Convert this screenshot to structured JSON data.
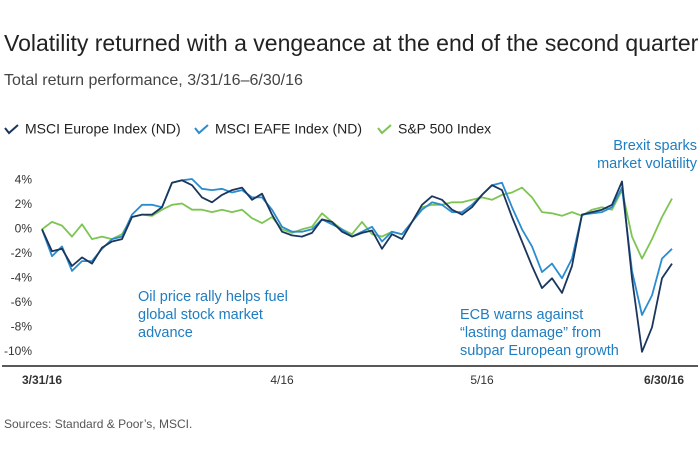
{
  "chart_data": {
    "type": "line",
    "title": "Volatility returned with a vengeance at the end of the second quarter",
    "subtitle": "Total return performance, 3/31/16–6/30/16",
    "source": "Sources: Standard & Poor’s, MSCI.",
    "categories": [
      "3/31/16",
      null,
      null,
      null,
      null,
      null,
      null,
      null,
      null,
      null,
      null,
      null,
      null,
      null,
      null,
      null,
      null,
      null,
      null,
      null,
      null,
      null,
      null,
      null,
      "4/16",
      null,
      null,
      null,
      null,
      null,
      null,
      null,
      null,
      null,
      null,
      null,
      null,
      null,
      null,
      null,
      null,
      null,
      null,
      null,
      "5/16",
      null,
      null,
      null,
      null,
      null,
      null,
      null,
      null,
      null,
      null,
      null,
      null,
      null,
      null,
      null,
      null,
      null,
      null,
      "6/30/16"
    ],
    "series": [
      {
        "name": "MSCI Europe Index (ND)",
        "color": "#1b365d",
        "values": [
          0,
          -1.8,
          -1.6,
          -3.0,
          -2.3,
          -2.8,
          -1.5,
          -1.0,
          -0.8,
          1.0,
          1.2,
          1.2,
          1.8,
          3.8,
          4.0,
          3.6,
          2.6,
          2.2,
          2.8,
          3.2,
          3.4,
          2.4,
          2.9,
          1.2,
          -0.2,
          -0.5,
          -0.6,
          -0.3,
          0.8,
          0.6,
          -0.2,
          -0.6,
          -0.3,
          -0.1,
          -1.6,
          -0.4,
          -0.8,
          0.6,
          2.0,
          2.7,
          2.4,
          1.6,
          1.2,
          1.8,
          2.8,
          3.6,
          3.2,
          1.0,
          -1.0,
          -3.0,
          -4.8,
          -4.0,
          -5.2,
          -3.0,
          1.2,
          1.4,
          1.6,
          2.0,
          3.9,
          -4.0,
          -10.0,
          -8.0,
          -4.0,
          -2.8
        ]
      },
      {
        "name": "MSCI EAFE Index (ND)",
        "color": "#2b8ccf",
        "values": [
          0,
          -2.2,
          -1.4,
          -3.4,
          -2.6,
          -2.6,
          -1.6,
          -0.8,
          -0.6,
          1.2,
          2.0,
          2.0,
          1.8,
          3.8,
          4.0,
          4.1,
          3.3,
          3.2,
          3.3,
          3.0,
          3.2,
          2.6,
          2.6,
          1.6,
          0.2,
          -0.2,
          -0.2,
          0.0,
          0.8,
          0.4,
          0.0,
          -0.6,
          -0.2,
          0.2,
          -1.0,
          -0.2,
          -0.4,
          0.6,
          1.6,
          2.2,
          2.0,
          1.4,
          1.4,
          2.0,
          2.8,
          3.6,
          3.8,
          1.8,
          0.0,
          -1.4,
          -3.5,
          -2.8,
          -4.0,
          -2.4,
          1.2,
          1.3,
          1.4,
          1.8,
          3.4,
          -3.4,
          -7.0,
          -5.4,
          -2.4,
          -1.6
        ]
      },
      {
        "name": "S&P 500 Index",
        "color": "#7dc552",
        "values": [
          0,
          0.6,
          0.3,
          -0.6,
          0.4,
          -0.8,
          -0.6,
          -0.8,
          -0.4,
          1.0,
          1.2,
          1.1,
          1.6,
          2.0,
          2.1,
          1.6,
          1.6,
          1.4,
          1.6,
          1.4,
          1.6,
          0.9,
          0.5,
          1.0,
          0.0,
          -0.3,
          0.0,
          0.2,
          1.3,
          0.6,
          0.0,
          -0.4,
          0.6,
          -0.4,
          -0.6,
          -0.2,
          -0.4,
          0.6,
          1.8,
          2.0,
          2.0,
          2.2,
          2.2,
          2.4,
          2.6,
          2.4,
          2.8,
          3.0,
          3.4,
          2.6,
          1.4,
          1.3,
          1.1,
          1.4,
          1.1,
          1.6,
          1.8,
          1.6,
          3.2,
          -0.6,
          -2.4,
          -0.8,
          1.0,
          2.5
        ]
      }
    ],
    "ylim": [
      -11,
      5
    ],
    "yticks": [
      {
        "value": 4,
        "label": "4%"
      },
      {
        "value": 2,
        "label": "2%"
      },
      {
        "value": 0,
        "label": "0%"
      },
      {
        "value": -2,
        "label": "-2%"
      },
      {
        "value": -4,
        "label": "-4%"
      },
      {
        "value": -6,
        "label": "-6%"
      },
      {
        "value": -8,
        "label": "-8%"
      },
      {
        "value": -10,
        "label": "-10%"
      }
    ],
    "grid": false,
    "annotations": [
      {
        "lines": [
          "Brexit sparks",
          "market volatility"
        ]
      },
      {
        "lines": [
          "Oil price rally helps fuel",
          "global stock market",
          "advance"
        ]
      },
      {
        "lines": [
          "ECB warns against",
          "“lasting damage” from",
          "subpar European growth"
        ]
      }
    ]
  }
}
